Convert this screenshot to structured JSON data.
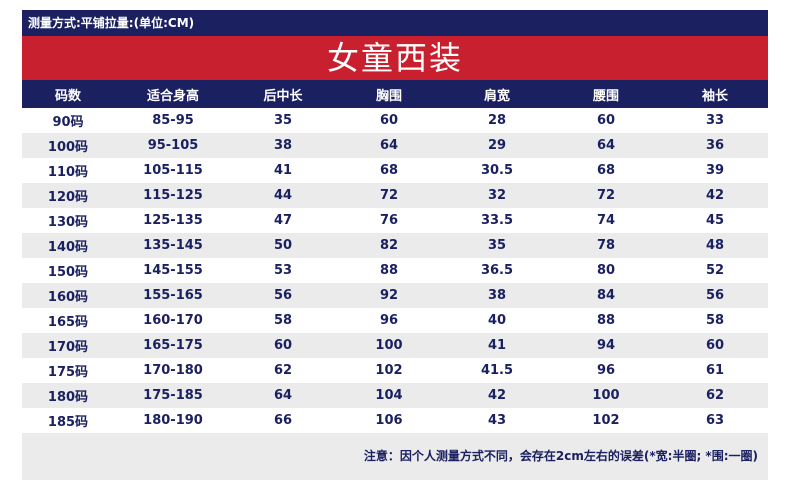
{
  "measure_label": "测量方式:平铺拉量:(单位:CM)",
  "title": "女童西装",
  "columns": [
    "码数",
    "适合身高",
    "后中长",
    "胸围",
    "肩宽",
    "腰围",
    "袖长"
  ],
  "rows": [
    [
      "90码",
      "85-95",
      "35",
      "60",
      "28",
      "60",
      "33"
    ],
    [
      "100码",
      "95-105",
      "38",
      "64",
      "29",
      "64",
      "36"
    ],
    [
      "110码",
      "105-115",
      "41",
      "68",
      "30.5",
      "68",
      "39"
    ],
    [
      "120码",
      "115-125",
      "44",
      "72",
      "32",
      "72",
      "42"
    ],
    [
      "130码",
      "125-135",
      "47",
      "76",
      "33.5",
      "74",
      "45"
    ],
    [
      "140码",
      "135-145",
      "50",
      "82",
      "35",
      "78",
      "48"
    ],
    [
      "150码",
      "145-155",
      "53",
      "88",
      "36.5",
      "80",
      "52"
    ],
    [
      "160码",
      "155-165",
      "56",
      "92",
      "38",
      "84",
      "56"
    ],
    [
      "165码",
      "160-170",
      "58",
      "96",
      "40",
      "88",
      "58"
    ],
    [
      "170码",
      "165-175",
      "60",
      "100",
      "41",
      "94",
      "60"
    ],
    [
      "175码",
      "170-180",
      "62",
      "102",
      "41.5",
      "96",
      "61"
    ],
    [
      "180码",
      "175-185",
      "64",
      "104",
      "42",
      "100",
      "62"
    ],
    [
      "185码",
      "180-190",
      "66",
      "106",
      "43",
      "102",
      "63"
    ]
  ],
  "note": "注意：因个人测量方式不同，会存在2cm左右的误差(*宽:半圈; *围:一圈)",
  "colors": {
    "navy": "#1a2060",
    "red": "#c8202e",
    "stripe": "#ebebeb"
  }
}
